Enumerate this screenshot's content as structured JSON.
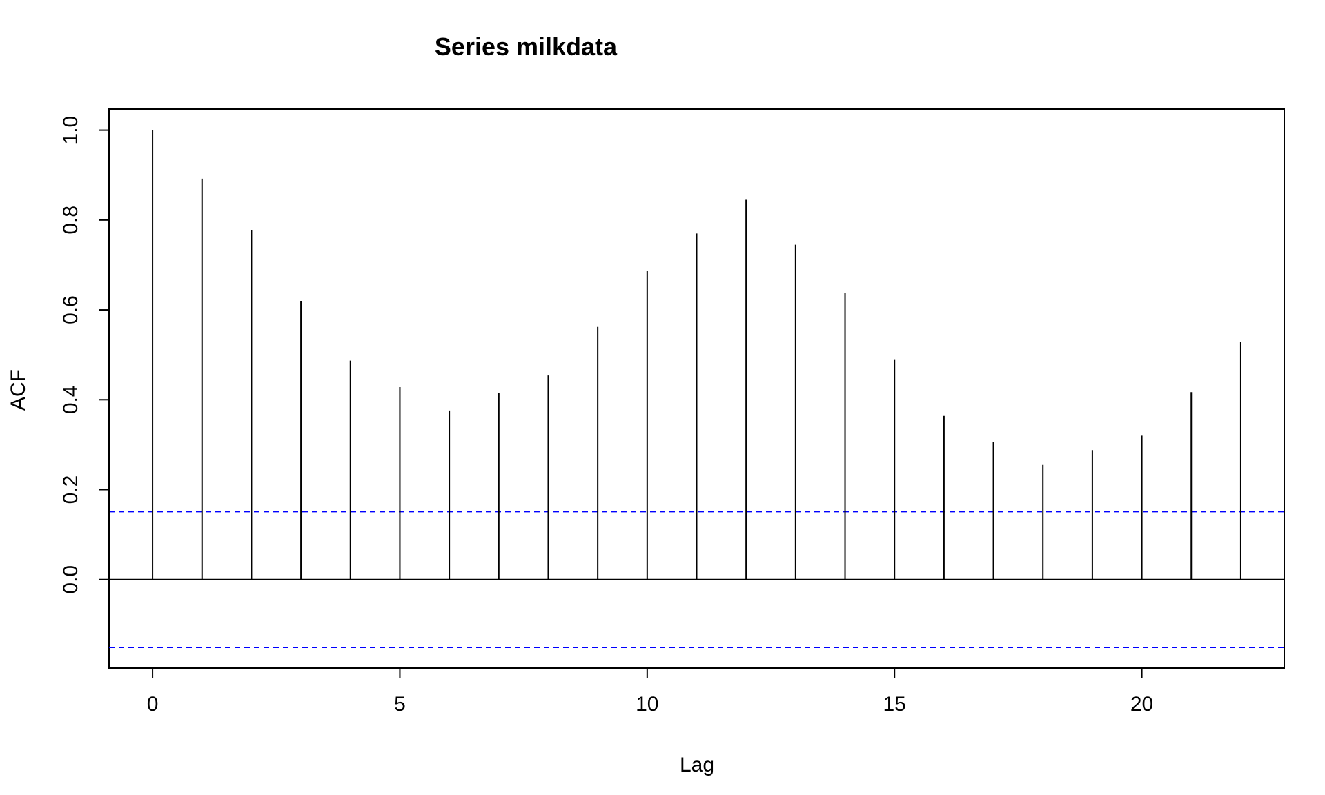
{
  "chart_data": {
    "type": "bar",
    "title": "Series  milkdata",
    "xlabel": "Lag",
    "ylabel": "ACF",
    "x": [
      0,
      1,
      2,
      3,
      4,
      5,
      6,
      7,
      8,
      9,
      10,
      11,
      12,
      13,
      14,
      15,
      16,
      17,
      18,
      19,
      20,
      21,
      22
    ],
    "values": [
      1.0,
      0.892,
      0.778,
      0.62,
      0.487,
      0.428,
      0.376,
      0.415,
      0.454,
      0.562,
      0.686,
      0.77,
      0.845,
      0.745,
      0.638,
      0.49,
      0.364,
      0.306,
      0.255,
      0.288,
      0.32,
      0.417,
      0.529
    ],
    "xlim": [
      -0.88,
      22.88
    ],
    "ylim": [
      -0.197,
      1.047
    ],
    "xticks": [
      0,
      5,
      10,
      15,
      20
    ],
    "xtick_labels": [
      "0",
      "5",
      "10",
      "15",
      "20"
    ],
    "yticks": [
      0.0,
      0.2,
      0.4,
      0.6,
      0.8,
      1.0
    ],
    "ytick_labels": [
      "0.0",
      "0.2",
      "0.4",
      "0.6",
      "0.8",
      "1.0"
    ],
    "confidence_bounds": [
      0.151,
      -0.151
    ],
    "grid": false,
    "colors": {
      "bars": "#000000",
      "confidence": "#0000ff",
      "axes": "#000000"
    }
  }
}
